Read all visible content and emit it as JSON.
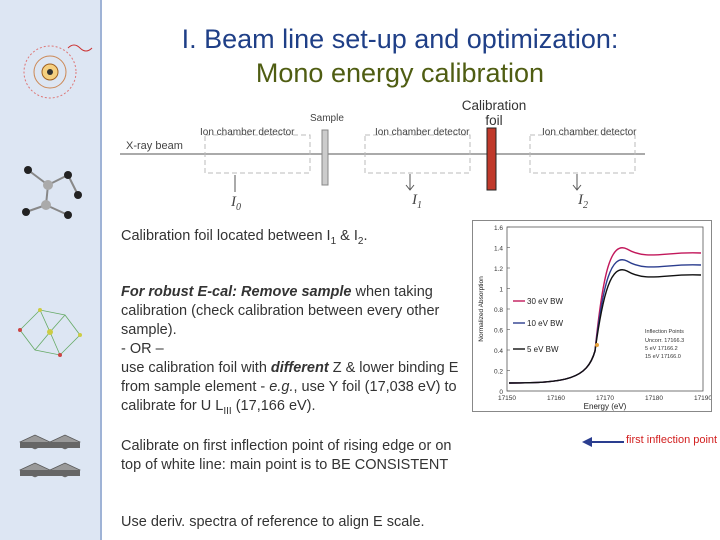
{
  "title": {
    "line1": "I. Beam line set-up and optimization:",
    "line2": "Mono energy calibration"
  },
  "diagram": {
    "calibration_foil_label_1": "Calibration",
    "calibration_foil_label_2": "foil",
    "sample_label": "Sample",
    "ion_chamber_1": "Ion chamber detector",
    "ion_chamber_2": "Ion chamber detector",
    "ion_chamber_3": "Ion chamber detector",
    "xray_beam": "X-ray beam",
    "i0": "I",
    "i0_sub": "0",
    "i1": "I",
    "i1_sub": "1",
    "i2": "I",
    "i2_sub": "2"
  },
  "body": {
    "para1_a": "Calibration foil located between I",
    "para1_sub1": "1",
    "para1_b": " & I",
    "para1_sub2": "2",
    "para1_c": ".",
    "para2_em": "For robust E-cal: Remove sample",
    "para2_rest1": " when taking calibration (check calibration between every other sample).",
    "para2_or": "- OR –",
    "para2_rest2a": "use calibration foil with ",
    "para2_em2": "different",
    "para2_rest2b": " Z & lower binding E from sample element - ",
    "para2_eg": "e.g.",
    "para2_rest2c": ", use Y foil (17,038 eV) to calibrate for U L",
    "para2_sub": "III",
    "para2_rest2d": " (17,166 eV).",
    "para3": "Calibrate on first inflection point of rising edge or on top of white line: main point is to BE CONSISTENT",
    "para4": "Use deriv. spectra of reference to align E scale."
  },
  "plot": {
    "yticks": [
      "1.6",
      "1.4",
      "1.2",
      "1",
      "0.8",
      "0.6",
      "0.4",
      "0.2",
      "0"
    ],
    "xticks": [
      "17150",
      "17160",
      "17170",
      "17180",
      "17190"
    ],
    "xlabel": "Energy (eV)",
    "ylabel": "Normalized Absorption",
    "legend": [
      "30 eV BW",
      "10 eV BW",
      "5 eV BW"
    ],
    "inflection_title": "Inflection Points",
    "inflection_rows": [
      "Uncorr.  17166.3",
      "5 eV      17166.2",
      "15 eV     17166.0"
    ]
  },
  "annotation": {
    "first_inflection": "first inflection point"
  },
  "colors": {
    "title_blue": "#1f3f87",
    "title_olive": "#4f5d12",
    "foil_red": "#c0392b",
    "curve_magenta": "#c2185b",
    "curve_blue": "#2c3e8f",
    "curve_black": "#111111",
    "arrow_blue": "#2a3d8f"
  }
}
